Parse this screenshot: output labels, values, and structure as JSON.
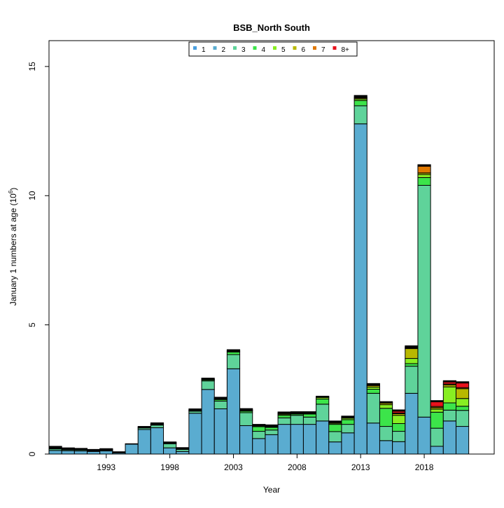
{
  "chart_data": {
    "type": "bar",
    "stacked": true,
    "title": "BSB_North South",
    "xlabel": "Year",
    "ylabel": "January 1 numbers at age (10",
    "ylabel_exp": "6",
    "ylabel_close": ")",
    "ylim": [
      0,
      16
    ],
    "yticks": [
      0,
      5,
      10,
      15
    ],
    "xticks": [
      1993,
      1998,
      2003,
      2008,
      2013,
      2018
    ],
    "xlim": [
      1988.5,
      2023.5
    ],
    "legend_position": "top-center",
    "years": [
      1989,
      1990,
      1991,
      1992,
      1993,
      1994,
      1995,
      1996,
      1997,
      1998,
      1999,
      2000,
      2001,
      2002,
      2003,
      2004,
      2005,
      2006,
      2007,
      2008,
      2009,
      2010,
      2011,
      2012,
      2013,
      2014,
      2015,
      2016,
      2017,
      2018,
      2019,
      2020,
      2021
    ],
    "series": [
      {
        "name": "1",
        "color": "#4a9fe0",
        "values": [
          0,
          0,
          0,
          0,
          0,
          0,
          0,
          0,
          0,
          0,
          0,
          0,
          0,
          0,
          0,
          0,
          0,
          0,
          0,
          0,
          0,
          0,
          0,
          0,
          0,
          0,
          0,
          0,
          0,
          0,
          0,
          0,
          0
        ]
      },
      {
        "name": "2",
        "color": "#5aacd0",
        "values": [
          0.14,
          0.13,
          0.12,
          0.1,
          0.12,
          0.04,
          0.38,
          0.95,
          1.02,
          0.24,
          0.1,
          1.58,
          2.5,
          1.75,
          3.3,
          1.1,
          0.6,
          0.75,
          1.15,
          1.15,
          1.15,
          1.28,
          0.47,
          0.82,
          12.78,
          1.2,
          0.52,
          0.48,
          2.35,
          1.43,
          0.3,
          1.28,
          1.07
        ]
      },
      {
        "name": "3",
        "color": "#5fd39a",
        "values": [
          0.06,
          0.04,
          0.04,
          0.03,
          0.03,
          0.02,
          0.0,
          0.06,
          0.1,
          0.16,
          0.08,
          0.08,
          0.33,
          0.3,
          0.55,
          0.5,
          0.28,
          0.18,
          0.25,
          0.35,
          0.28,
          0.65,
          0.4,
          0.33,
          0.7,
          1.15,
          0.55,
          0.4,
          1.05,
          8.97,
          0.7,
          0.42,
          0.62
        ]
      },
      {
        "name": "4",
        "color": "#3ce44a",
        "values": [
          0.02,
          0.01,
          0.01,
          0.01,
          0.01,
          0.01,
          0.0,
          0.01,
          0.02,
          0.02,
          0.02,
          0.02,
          0.04,
          0.06,
          0.1,
          0.06,
          0.18,
          0.1,
          0.1,
          0.05,
          0.12,
          0.2,
          0.28,
          0.18,
          0.2,
          0.16,
          0.7,
          0.3,
          0.1,
          0.3,
          0.62,
          0.28,
          0.16
        ]
      },
      {
        "name": "5",
        "color": "#88ee22",
        "values": [
          0.01,
          0.01,
          0.01,
          0.01,
          0.01,
          0.0,
          0.0,
          0.0,
          0.01,
          0.01,
          0.01,
          0.01,
          0.01,
          0.02,
          0.03,
          0.03,
          0.03,
          0.03,
          0.04,
          0.02,
          0.02,
          0.06,
          0.04,
          0.06,
          0.06,
          0.08,
          0.14,
          0.32,
          0.2,
          0.12,
          0.12,
          0.62,
          0.3
        ]
      },
      {
        "name": "6",
        "color": "#b8b800",
        "values": [
          0.01,
          0.01,
          0.01,
          0.0,
          0.01,
          0.0,
          0.0,
          0.0,
          0.01,
          0.01,
          0.01,
          0.01,
          0.01,
          0.01,
          0.01,
          0.02,
          0.02,
          0.02,
          0.03,
          0.02,
          0.02,
          0.01,
          0.03,
          0.02,
          0.04,
          0.06,
          0.06,
          0.06,
          0.38,
          0.06,
          0.06,
          0.08,
          0.38
        ]
      },
      {
        "name": "7",
        "color": "#e07800",
        "values": [
          0.0,
          0.0,
          0.0,
          0.0,
          0.0,
          0.0,
          0.0,
          0.0,
          0.0,
          0.0,
          0.0,
          0.0,
          0.0,
          0.0,
          0.0,
          0.0,
          0.0,
          0.01,
          0.01,
          0.01,
          0.01,
          0.0,
          0.02,
          0.02,
          0.02,
          0.03,
          0.02,
          0.03,
          0.03,
          0.26,
          0.04,
          0.03,
          0.04
        ]
      },
      {
        "name": "8+",
        "color": "#e8121c",
        "values": [
          0.0,
          0.0,
          0.0,
          0.0,
          0.0,
          0.0,
          0.0,
          0.0,
          0.0,
          0.0,
          0.0,
          0.0,
          0.0,
          0.0,
          0.0,
          0.0,
          0.0,
          0.0,
          0.0,
          0.0,
          0.0,
          0.0,
          0.0,
          0.0,
          0.0,
          0.0,
          0.0,
          0.07,
          0.02,
          0.0,
          0.18,
          0.08,
          0.18
        ]
      },
      {
        "name": "",
        "color": "#000000",
        "values": [
          0.06,
          0.04,
          0.03,
          0.03,
          0.03,
          0.02,
          0.02,
          0.05,
          0.05,
          0.03,
          0.03,
          0.05,
          0.05,
          0.06,
          0.05,
          0.05,
          0.04,
          0.04,
          0.05,
          0.04,
          0.04,
          0.04,
          0.04,
          0.04,
          0.08,
          0.05,
          0.04,
          0.05,
          0.06,
          0.06,
          0.05,
          0.05,
          0.05
        ]
      }
    ]
  }
}
